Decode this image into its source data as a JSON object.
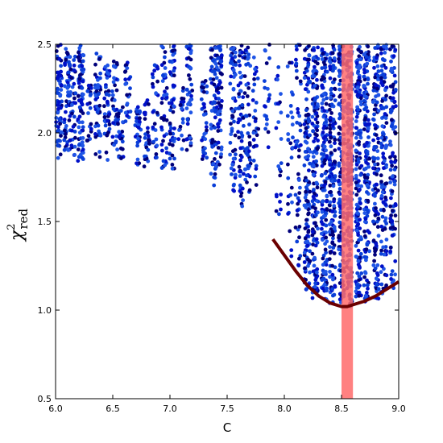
{
  "chart_data": {
    "type": "scatter",
    "xlabel": "C",
    "ylabel": {
      "symbol": "χ",
      "superscript": "2",
      "subscript": "red"
    },
    "xlim": [
      6.0,
      9.0
    ],
    "ylim": [
      0.5,
      2.5
    ],
    "xticks": [
      "6.0",
      "6.5",
      "7.0",
      "7.5",
      "8.0",
      "8.5",
      "9.0"
    ],
    "yticks": [
      "0.5",
      "1.0",
      "1.5",
      "2.0",
      "2.5"
    ],
    "grid": false,
    "point_colors": [
      "#00007a",
      "#0010c8",
      "#1f55e6",
      "#0b3fd8"
    ],
    "scatter_clusters": [
      {
        "x": 6.03,
        "y_min": 1.85,
        "y_max": 2.5,
        "n": 70
      },
      {
        "x": 6.1,
        "y_min": 1.88,
        "y_max": 2.5,
        "n": 55
      },
      {
        "x": 6.15,
        "y_min": 1.86,
        "y_max": 2.45,
        "n": 45
      },
      {
        "x": 6.22,
        "y_min": 1.84,
        "y_max": 2.5,
        "n": 80
      },
      {
        "x": 6.3,
        "y_min": 1.95,
        "y_max": 2.3,
        "n": 20
      },
      {
        "x": 6.37,
        "y_min": 1.85,
        "y_max": 2.45,
        "n": 55
      },
      {
        "x": 6.45,
        "y_min": 1.84,
        "y_max": 2.4,
        "n": 45
      },
      {
        "x": 6.52,
        "y_min": 1.9,
        "y_max": 2.42,
        "n": 35
      },
      {
        "x": 6.57,
        "y_min": 1.85,
        "y_max": 2.15,
        "n": 25
      },
      {
        "x": 6.63,
        "y_min": 2.05,
        "y_max": 2.4,
        "n": 25
      },
      {
        "x": 6.72,
        "y_min": 1.82,
        "y_max": 2.15,
        "n": 35
      },
      {
        "x": 6.8,
        "y_min": 1.8,
        "y_max": 2.2,
        "n": 30
      },
      {
        "x": 6.87,
        "y_min": 1.85,
        "y_max": 2.4,
        "n": 30
      },
      {
        "x": 6.95,
        "y_min": 1.8,
        "y_max": 2.5,
        "n": 45
      },
      {
        "x": 7.02,
        "y_min": 1.78,
        "y_max": 2.5,
        "n": 55
      },
      {
        "x": 7.1,
        "y_min": 1.9,
        "y_max": 2.3,
        "n": 20
      },
      {
        "x": 7.17,
        "y_min": 1.9,
        "y_max": 2.5,
        "n": 45
      },
      {
        "x": 7.3,
        "y_min": 1.85,
        "y_max": 2.3,
        "n": 35
      },
      {
        "x": 7.38,
        "y_min": 1.7,
        "y_max": 2.5,
        "n": 65
      },
      {
        "x": 7.43,
        "y_min": 1.75,
        "y_max": 2.5,
        "n": 60
      },
      {
        "x": 7.55,
        "y_min": 1.65,
        "y_max": 2.5,
        "n": 65
      },
      {
        "x": 7.62,
        "y_min": 1.58,
        "y_max": 2.5,
        "n": 60
      },
      {
        "x": 7.68,
        "y_min": 1.62,
        "y_max": 2.5,
        "n": 50
      },
      {
        "x": 7.75,
        "y_min": 1.7,
        "y_max": 2.45,
        "n": 30
      },
      {
        "x": 7.85,
        "y_min": 1.85,
        "y_max": 2.5,
        "n": 20
      },
      {
        "x": 7.95,
        "y_min": 1.5,
        "y_max": 2.45,
        "n": 25
      },
      {
        "x": 8.05,
        "y_min": 1.3,
        "y_max": 2.4,
        "n": 30
      },
      {
        "x": 8.12,
        "y_min": 1.2,
        "y_max": 2.5,
        "n": 50
      },
      {
        "x": 8.2,
        "y_min": 1.1,
        "y_max": 2.5,
        "n": 140
      },
      {
        "x": 8.27,
        "y_min": 1.06,
        "y_max": 2.5,
        "n": 160
      },
      {
        "x": 8.35,
        "y_min": 1.04,
        "y_max": 2.5,
        "n": 170
      },
      {
        "x": 8.42,
        "y_min": 1.03,
        "y_max": 2.5,
        "n": 170
      },
      {
        "x": 8.5,
        "y_min": 1.02,
        "y_max": 2.5,
        "n": 180
      },
      {
        "x": 8.57,
        "y_min": 1.02,
        "y_max": 2.5,
        "n": 180
      },
      {
        "x": 8.65,
        "y_min": 1.03,
        "y_max": 2.5,
        "n": 170
      },
      {
        "x": 8.72,
        "y_min": 1.04,
        "y_max": 2.5,
        "n": 150
      },
      {
        "x": 8.8,
        "y_min": 1.06,
        "y_max": 2.5,
        "n": 140
      },
      {
        "x": 8.87,
        "y_min": 1.08,
        "y_max": 2.5,
        "n": 130
      },
      {
        "x": 8.95,
        "y_min": 1.12,
        "y_max": 2.5,
        "n": 120
      }
    ],
    "best_fit_curve": {
      "color": "#6b0000",
      "x": [
        7.9,
        8.0,
        8.1,
        8.2,
        8.3,
        8.4,
        8.5,
        8.55,
        8.6,
        8.7,
        8.8,
        8.9,
        9.0
      ],
      "y": [
        1.4,
        1.31,
        1.22,
        1.14,
        1.08,
        1.04,
        1.02,
        1.02,
        1.03,
        1.05,
        1.08,
        1.12,
        1.16
      ]
    },
    "highlight_band": {
      "x_min": 8.5,
      "x_max": 8.6,
      "color": "#ff6b6b"
    }
  }
}
